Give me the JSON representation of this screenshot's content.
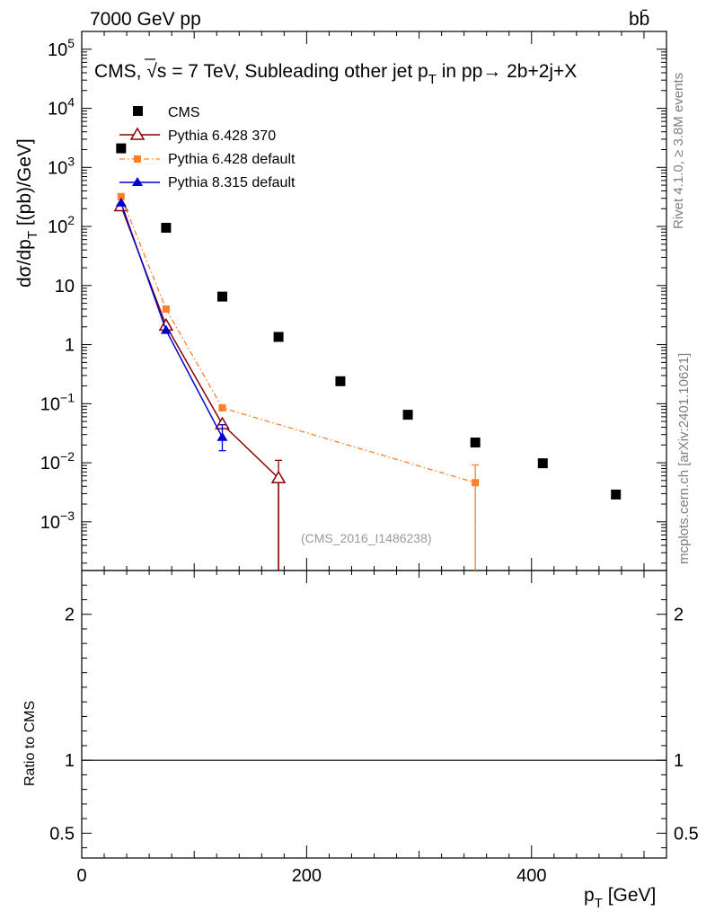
{
  "header": {
    "energy_label": "7000 GeV pp",
    "process_label": "bb̄"
  },
  "side_labels": {
    "rivet": "Rivet 4.1.0, ≥ 3.8M events",
    "mcplots": "mcplots.cern.ch [arXiv:2401.10621]"
  },
  "chart_data": {
    "type": "scatter",
    "title": "CMS, √s = 7 TeV, Subleading other jet pT in pp → 2b+2j+X",
    "title_parts": {
      "prefix": "CMS, ",
      "root": "√s",
      "middle": " = 7 TeV, Subleading other jet p",
      "sub": "T",
      "suffix": " in pp→  2b+2j+X"
    },
    "watermark": "(CMS_2016_I1486238)",
    "ylabel": "dσ/dpT [(pb)/GeV]",
    "ylabel_parts": {
      "a": "dσ/dp",
      "sub": "T",
      "b": "  [(pb)/GeV]"
    },
    "xlabel": "pT [GeV]",
    "xlabel_parts": {
      "a": "p",
      "sub": "T",
      "b": " [GeV]"
    },
    "ratio_ylabel": "Ratio to CMS",
    "xlim": [
      0,
      520
    ],
    "ylim_log": [
      0.00015,
      200000
    ],
    "ratio_ylim": [
      0.33,
      2.3
    ],
    "x_ticks": [
      {
        "value": 0,
        "label": "0"
      },
      {
        "value": 200,
        "label": "200"
      },
      {
        "value": 400,
        "label": "400"
      }
    ],
    "y_ticks": [
      {
        "value": 0.001,
        "base": "10",
        "exp": "−3"
      },
      {
        "value": 0.01,
        "base": "10",
        "exp": "−2"
      },
      {
        "value": 0.1,
        "base": "10",
        "exp": "−1"
      },
      {
        "value": 1,
        "base": "1",
        "exp": ""
      },
      {
        "value": 10,
        "base": "10",
        "exp": ""
      },
      {
        "value": 100,
        "base": "10",
        "exp": "2"
      },
      {
        "value": 1000,
        "base": "10",
        "exp": "3"
      },
      {
        "value": 10000,
        "base": "10",
        "exp": "4"
      },
      {
        "value": 100000,
        "base": "10",
        "exp": "5"
      }
    ],
    "ratio_ticks": [
      {
        "value": 0.5,
        "label": "0.5"
      },
      {
        "value": 1,
        "label": "1"
      },
      {
        "value": 2,
        "label": "2"
      }
    ],
    "series": [
      {
        "name": "CMS",
        "marker": "square",
        "color": "#000000",
        "x": [
          35,
          75,
          125,
          175,
          230,
          290,
          350,
          410,
          475
        ],
        "y": [
          2100,
          95,
          6.5,
          1.35,
          0.24,
          0.065,
          0.022,
          0.0098,
          0.0029
        ]
      },
      {
        "name": "Pythia 6.428 370",
        "marker": "open-triangle",
        "color": "#8b0000",
        "line": "solid",
        "x": [
          35,
          75,
          125,
          175,
          175
        ],
        "y": [
          220,
          2.1,
          0.045,
          0.0055,
          1e-05
        ],
        "err_hi": [
          0,
          0,
          0,
          0.0055,
          0
        ],
        "err_lo": [
          0,
          0,
          0,
          0.0055,
          0
        ],
        "draw_points": [
          true,
          true,
          true,
          true,
          false
        ]
      },
      {
        "name": "Pythia 6.428 default",
        "marker": "square",
        "color": "#ff7f2a",
        "line": "dashdot",
        "x": [
          35,
          75,
          125,
          350,
          350
        ],
        "y": [
          320,
          4.0,
          0.085,
          0.0046,
          1e-05
        ],
        "err_hi": [
          0,
          0,
          0,
          0.0046,
          0
        ],
        "err_lo": [
          0,
          0,
          0,
          0.0046,
          0
        ],
        "draw_points": [
          true,
          true,
          true,
          true,
          false
        ]
      },
      {
        "name": "Pythia 8.315 default",
        "marker": "triangle",
        "color": "#0000cc",
        "line": "solid",
        "x": [
          35,
          75,
          125
        ],
        "y": [
          250,
          1.75,
          0.027
        ],
        "err_hi": [
          0,
          0,
          0.017
        ],
        "err_lo": [
          0,
          0,
          0.011
        ],
        "draw_points": [
          true,
          true,
          true
        ]
      }
    ],
    "legend_position": "top-left"
  }
}
